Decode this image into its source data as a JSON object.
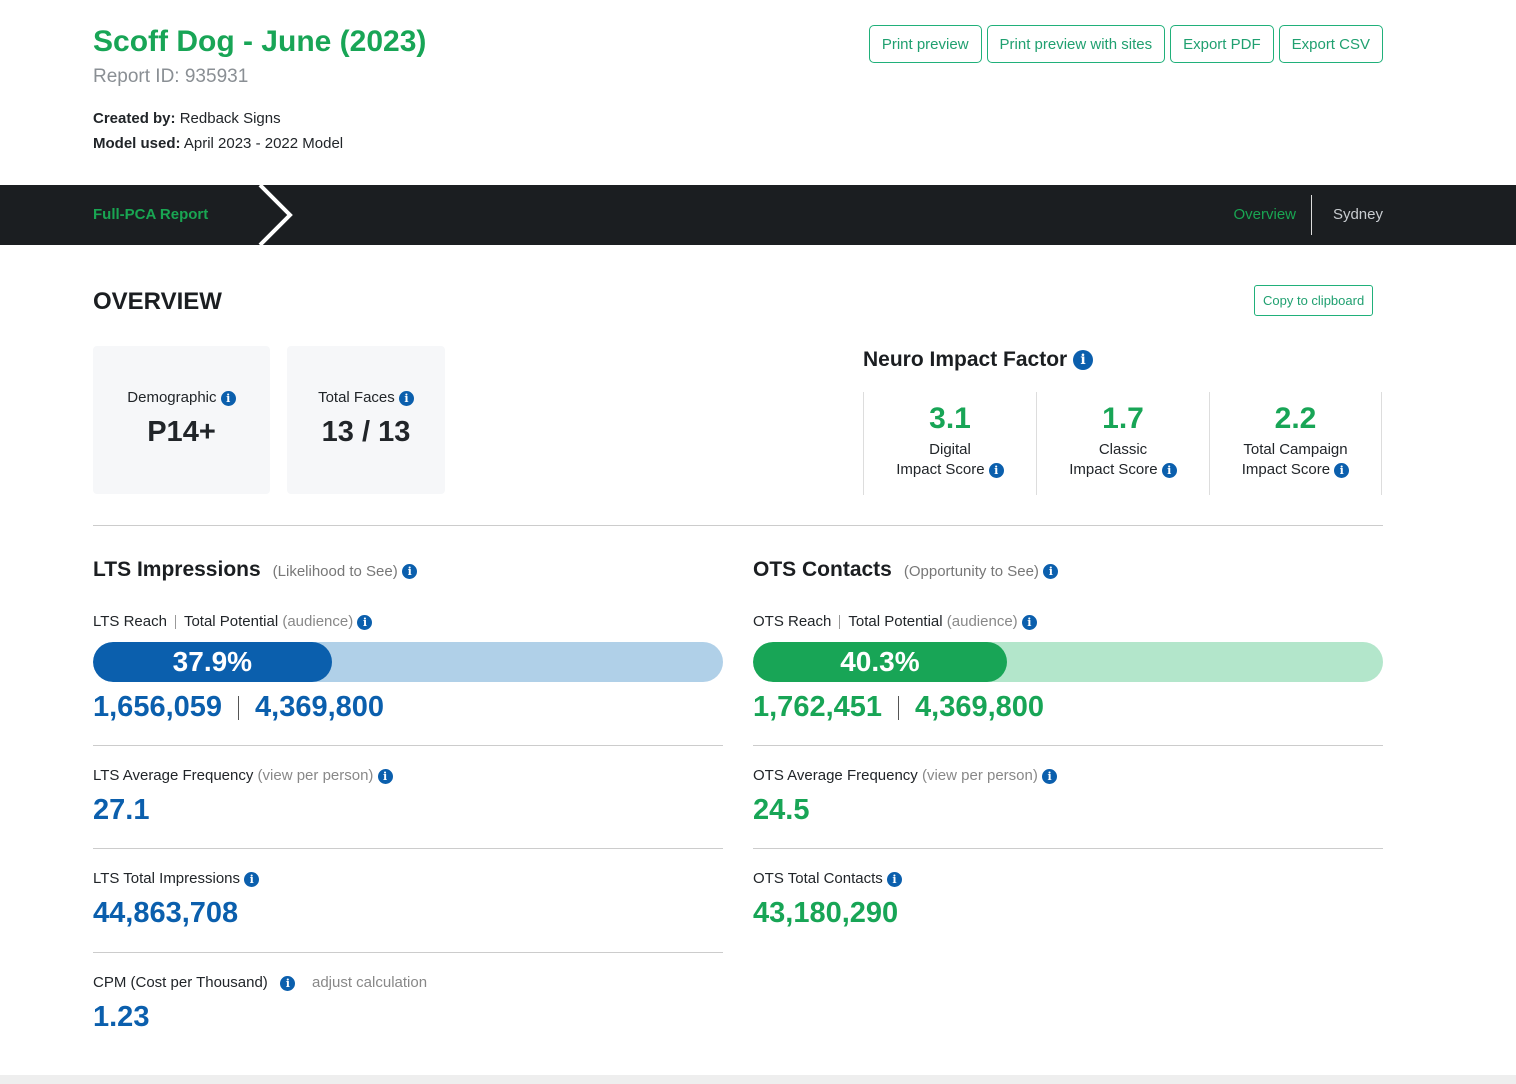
{
  "header": {
    "title": "Scoff Dog - June (2023)",
    "report_id": "Report ID: 935931",
    "created_by_label": "Created by:",
    "created_by": "Redback Signs",
    "model_label": "Model used:",
    "model": "April 2023 - 2022 Model"
  },
  "toolbar": {
    "print_preview": "Print preview",
    "print_preview_sites": "Print preview with sites",
    "export_pdf": "Export PDF",
    "export_csv": "Export CSV"
  },
  "nav": {
    "breadcrumb": "Full-PCA Report",
    "overview": "Overview",
    "sydney": "Sydney"
  },
  "overview": {
    "title": "OVERVIEW",
    "copy": "Copy to clipboard",
    "demographic": {
      "label": "Demographic",
      "value": "P14+"
    },
    "faces": {
      "label": "Total Faces",
      "value": "13 / 13"
    }
  },
  "neuro": {
    "title": "Neuro Impact Factor",
    "items": [
      {
        "value": "3.1",
        "line1": "Digital",
        "line2": "Impact Score"
      },
      {
        "value": "1.7",
        "line1": "Classic",
        "line2": "Impact Score"
      },
      {
        "value": "2.2",
        "line1": "Total Campaign",
        "line2": "Impact Score"
      }
    ]
  },
  "lts": {
    "title": "LTS Impressions",
    "subtitle": "(Likelihood to See)",
    "reach_label": "LTS Reach",
    "potential_label": "Total Potential",
    "audience": "(audience)",
    "percent": "37.9%",
    "percent_value": 37.9,
    "reach": "1,656,059",
    "potential": "4,369,800",
    "freq_label": "LTS Average Frequency",
    "freq_sub": "(view per person)",
    "freq": "27.1",
    "total_label": "LTS Total Impressions",
    "total": "44,863,708",
    "cpm_label": "CPM (Cost per Thousand)",
    "cpm_link": "adjust calculation",
    "cpm": "1.23"
  },
  "ots": {
    "title": "OTS Contacts",
    "subtitle": "(Opportunity to See)",
    "reach_label": "OTS Reach",
    "potential_label": "Total Potential",
    "audience": "(audience)",
    "percent": "40.3%",
    "percent_value": 40.3,
    "reach": "1,762,451",
    "potential": "4,369,800",
    "freq_label": "OTS Average Frequency",
    "freq_sub": "(view per person)",
    "freq": "24.5",
    "total_label": "OTS Total Contacts",
    "total": "43,180,290"
  },
  "colors": {
    "green": "#18a556",
    "blue": "#0b5fad",
    "blue_track": "#b0d0e8",
    "green_track": "#b3e6cb",
    "nav_bg": "#1b1e21"
  }
}
